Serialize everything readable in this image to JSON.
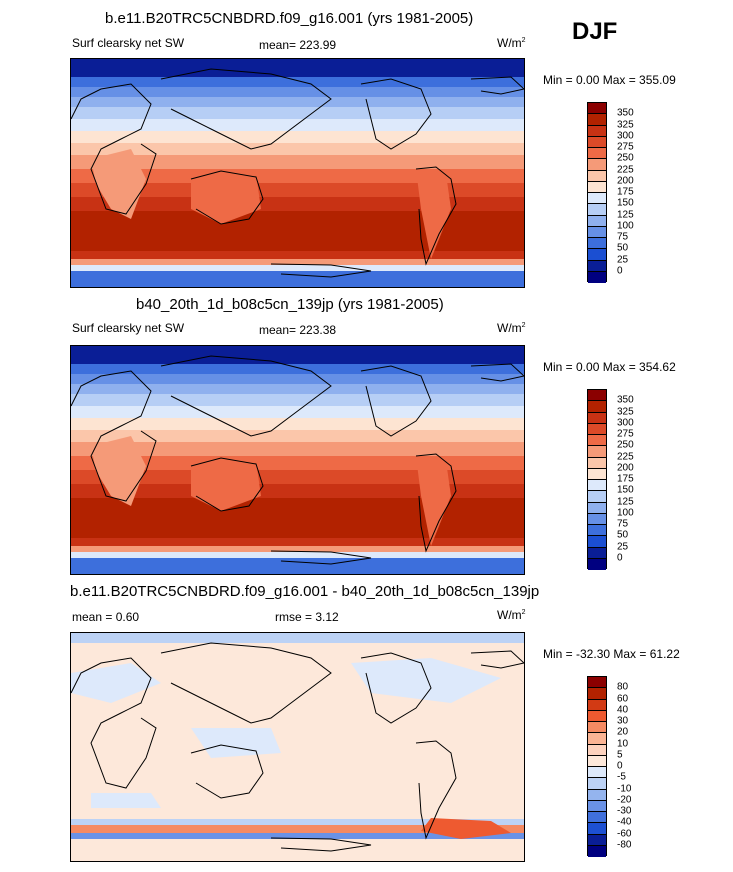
{
  "season": "DJF",
  "panels": [
    {
      "title": "b.e11.B20TRC5CNBDRD.f09_g16.001 (yrs 1981-2005)",
      "left_label": "Surf clearsky net SW",
      "center_label": "mean= 223.99",
      "units": "W/m",
      "units_sup": "2",
      "minmax": "Min =   0.00 Max = 355.09",
      "levels": [
        "350",
        "325",
        "300",
        "275",
        "250",
        "225",
        "200",
        "175",
        "150",
        "125",
        "100",
        "75",
        "50",
        "25",
        "0"
      ]
    },
    {
      "title": "b40_20th_1d_b08c5cn_139jp (yrs 1981-2005)",
      "left_label": "Surf clearsky net SW",
      "center_label": "mean= 223.38",
      "units": "W/m",
      "units_sup": "2",
      "minmax": "Min =   0.00 Max = 354.62",
      "levels": [
        "350",
        "325",
        "300",
        "275",
        "250",
        "225",
        "200",
        "175",
        "150",
        "125",
        "100",
        "75",
        "50",
        "25",
        "0"
      ]
    },
    {
      "title": "b.e11.B20TRC5CNBDRD.f09_g16.001 - b40_20th_1d_b08c5cn_139jp",
      "left_label": "mean =   0.60",
      "center_label": "rmse =   3.12",
      "units": "W/m",
      "units_sup": "2",
      "minmax": "Min = -32.30 Max =  61.22",
      "levels": [
        "80",
        "60",
        "40",
        "30",
        "20",
        "10",
        "5",
        "0",
        "-5",
        "-10",
        "-20",
        "-30",
        "-40",
        "-60",
        "-80"
      ]
    }
  ],
  "colors": {
    "field_scale": [
      "#8b0000",
      "#b22200",
      "#c83214",
      "#dc4a28",
      "#ee6a46",
      "#f59a78",
      "#fbc6aa",
      "#fde4d2",
      "#dde9fb",
      "#b6cef5",
      "#8fb0ee",
      "#6690e6",
      "#3d6fdc",
      "#1b4fd2",
      "#0a1e96",
      "#000080"
    ],
    "diff_scale": [
      "#8b0000",
      "#b22200",
      "#d23a14",
      "#ee5a30",
      "#f58a62",
      "#fbb494",
      "#fdd2be",
      "#fde8da",
      "#dde9fb",
      "#bcd2f5",
      "#94b4ee",
      "#6a92e6",
      "#4070dc",
      "#1d50d2",
      "#0a1e96",
      "#000080"
    ],
    "diff_background": "#fde8da"
  },
  "chart_data": [
    {
      "type": "heatmap",
      "title": "b.e11.B20TRC5CNBDRD.f09_g16.001 (yrs 1981-2005)",
      "variable": "Surf clearsky net SW",
      "units": "W/m2",
      "season": "DJF",
      "mean": 223.99,
      "min": 0.0,
      "max": 355.09,
      "contour_levels": [
        0,
        25,
        50,
        75,
        100,
        125,
        150,
        175,
        200,
        225,
        250,
        275,
        300,
        325,
        350
      ]
    },
    {
      "type": "heatmap",
      "title": "b40_20th_1d_b08c5cn_139jp (yrs 1981-2005)",
      "variable": "Surf clearsky net SW",
      "units": "W/m2",
      "season": "DJF",
      "mean": 223.38,
      "min": 0.0,
      "max": 354.62,
      "contour_levels": [
        0,
        25,
        50,
        75,
        100,
        125,
        150,
        175,
        200,
        225,
        250,
        275,
        300,
        325,
        350
      ]
    },
    {
      "type": "heatmap",
      "title": "b.e11.B20TRC5CNBDRD.f09_g16.001 - b40_20th_1d_b08c5cn_139jp",
      "units": "W/m2",
      "mean": 0.6,
      "rmse": 3.12,
      "min": -32.3,
      "max": 61.22,
      "contour_levels": [
        -80,
        -60,
        -40,
        -30,
        -20,
        -10,
        -5,
        0,
        5,
        10,
        20,
        30,
        40,
        60,
        80
      ]
    }
  ]
}
